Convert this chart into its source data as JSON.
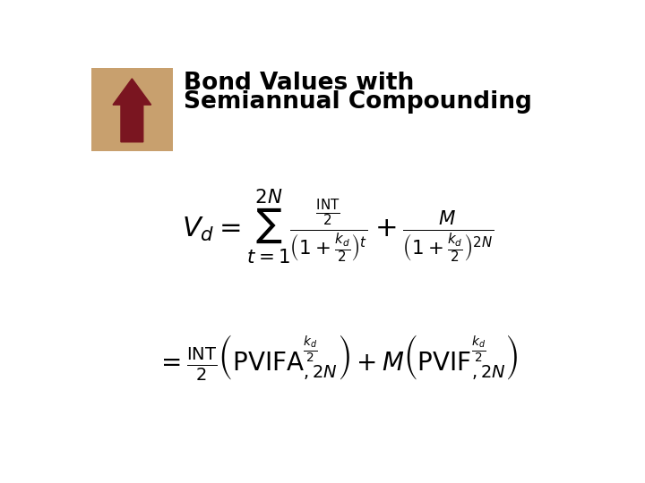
{
  "title_line1": "Bond Values with",
  "title_line2": "Semiannual Compounding",
  "title_fontsize": 19,
  "title_color": "#000000",
  "bg_color": "#ffffff",
  "arrow_bg_color": "#c8a06e",
  "arrow_color": "#7a1520",
  "formula_color": "#000000",
  "formula1": "$V_d = \\sum_{t=1}^{2N} \\frac{\\frac{\\mathrm{INT}}{2}}{\\left(1+\\frac{k_d}{2}\\right)^{t}} + \\frac{M}{\\left(1+\\frac{k_d}{2}\\right)^{2N}}$",
  "formula2": "$= \\frac{\\mathrm{INT}}{2}\\left(\\mathrm{PVIFA}^{\\frac{k_d}{2}}_{,2N}\\right) + M\\left(\\mathrm{PVIF}^{\\frac{k_d}{2}}_{,2N}\\right)$",
  "formula_fontsize": 22,
  "formula2_fontsize": 20
}
